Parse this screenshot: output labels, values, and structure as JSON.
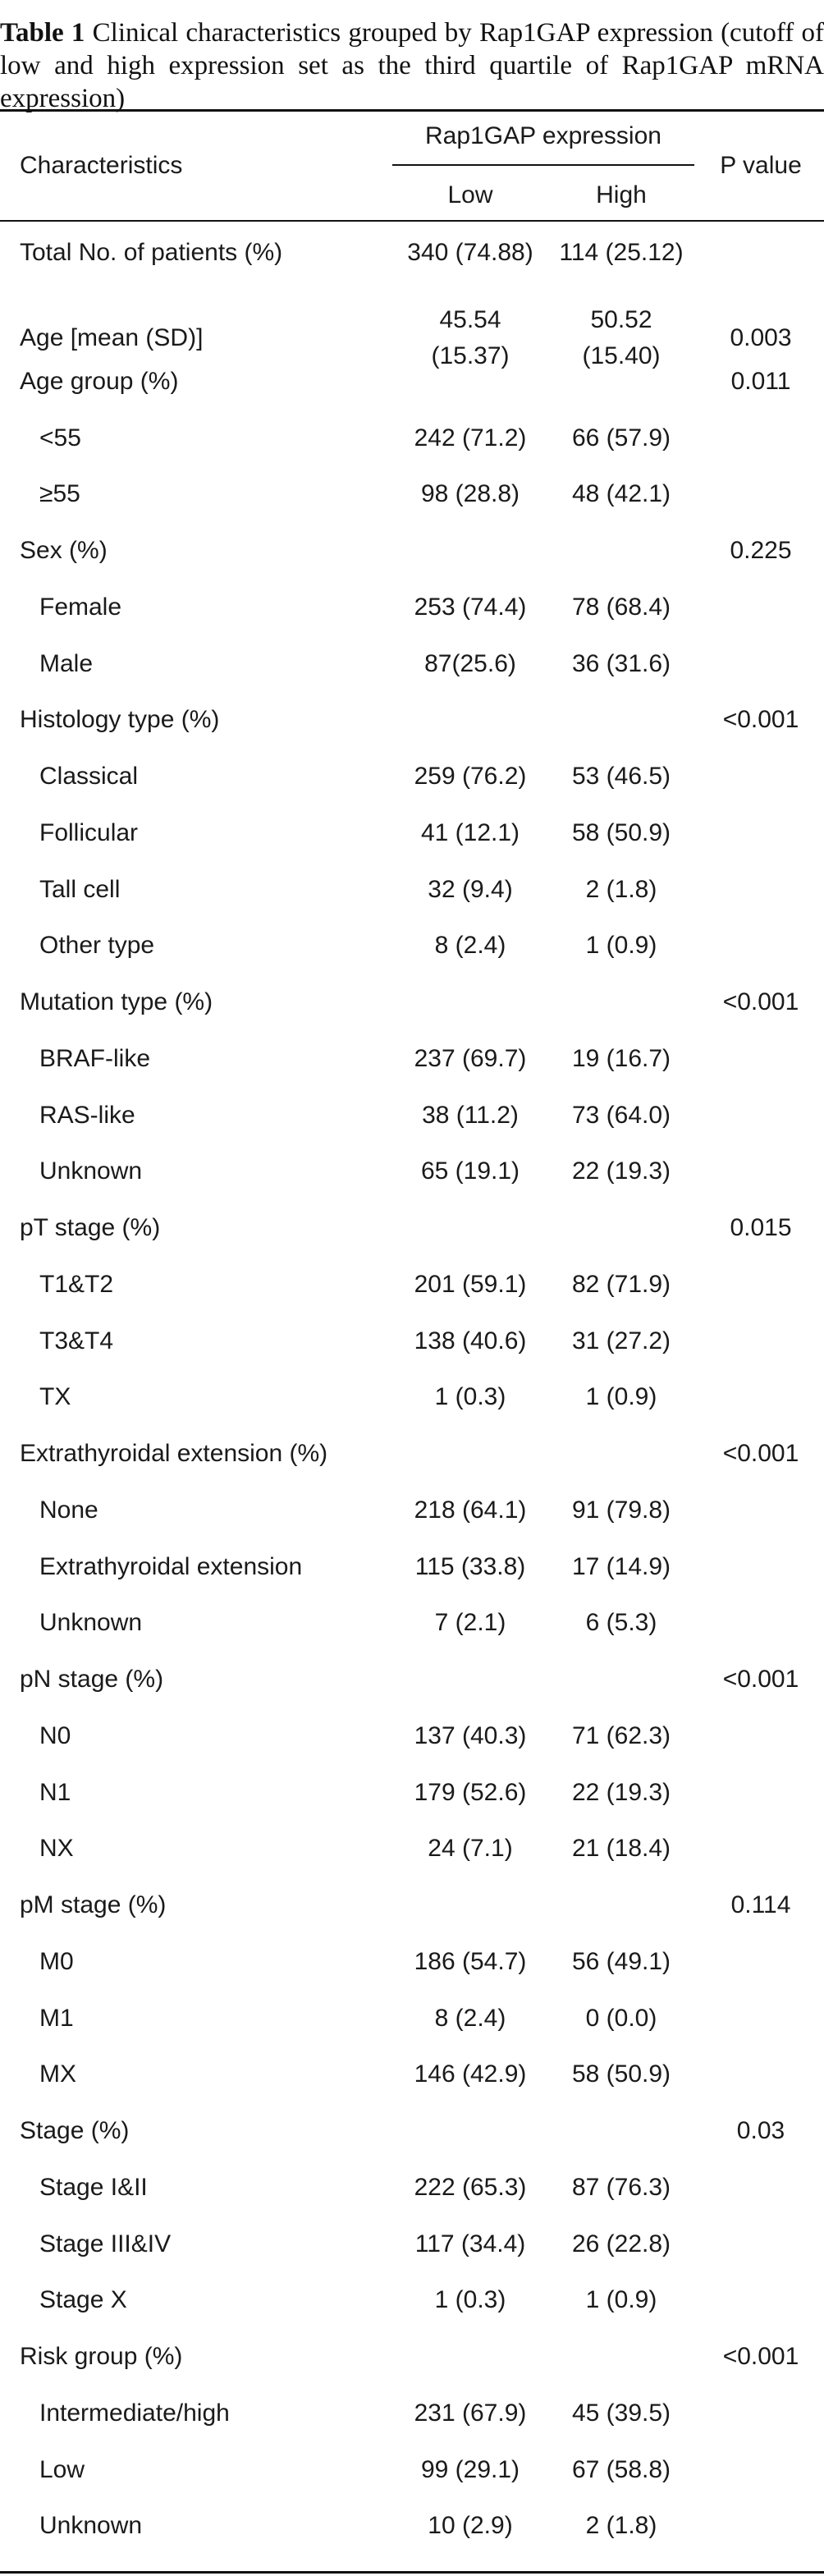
{
  "caption": {
    "label": "Table 1",
    "text": "Clinical characteristics grouped by Rap1GAP expression (cutoff of low and high expression set as the third quartile of Rap1GAP mRNA expression)"
  },
  "header": {
    "characteristics": "Characteristics",
    "group": "Rap1GAP expression",
    "low": "Low",
    "high": "High",
    "pvalue": "P value"
  },
  "rows": [
    {
      "label": "Total No. of patients (%)",
      "low": "340 (74.88)",
      "high": "114 (25.12)",
      "p": ""
    },
    {
      "label": "Age [mean (SD)]",
      "low": "45.54",
      "low2": "(15.37)",
      "high": "50.52",
      "high2": "(15.40)",
      "p": "0.003"
    },
    {
      "label": "Age group (%)",
      "low": "",
      "high": "",
      "p": "0.011"
    },
    {
      "label": "<55",
      "low": "242 (71.2)",
      "high": "66 (57.9)",
      "p": ""
    },
    {
      "label": "≥55",
      "low": "98 (28.8)",
      "high": "48 (42.1)",
      "p": ""
    },
    {
      "label": "Sex (%)",
      "low": "",
      "high": "",
      "p": "0.225"
    },
    {
      "label": "Female",
      "low": "253 (74.4)",
      "high": "78 (68.4)",
      "p": ""
    },
    {
      "label": "Male",
      "low": "87(25.6)",
      "high": "36 (31.6)",
      "p": ""
    },
    {
      "label": "Histology type (%)",
      "low": "",
      "high": "",
      "p": "<0.001"
    },
    {
      "label": "Classical",
      "low": "259 (76.2)",
      "high": "53 (46.5)",
      "p": ""
    },
    {
      "label": "Follicular",
      "low": "41 (12.1)",
      "high": "58 (50.9)",
      "p": ""
    },
    {
      "label": "Tall cell",
      "low": "32 (9.4)",
      "high": "2 (1.8)",
      "p": ""
    },
    {
      "label": "Other type",
      "low": "8 (2.4)",
      "high": "1 (0.9)",
      "p": ""
    },
    {
      "label": "Mutation type (%)",
      "low": "",
      "high": "",
      "p": "<0.001"
    },
    {
      "label": "BRAF-like",
      "low": "237 (69.7)",
      "high": "19 (16.7)",
      "p": ""
    },
    {
      "label": "RAS-like",
      "low": "38 (11.2)",
      "high": "73 (64.0)",
      "p": ""
    },
    {
      "label": "Unknown",
      "low": "65 (19.1)",
      "high": "22 (19.3)",
      "p": ""
    },
    {
      "label": "pT stage (%)",
      "low": "",
      "high": "",
      "p": "0.015"
    },
    {
      "label": "T1&T2",
      "low": "201 (59.1)",
      "high": "82 (71.9)",
      "p": ""
    },
    {
      "label": "T3&T4",
      "low": "138 (40.6)",
      "high": "31 (27.2)",
      "p": ""
    },
    {
      "label": "TX",
      "low": "1 (0.3)",
      "high": "1 (0.9)",
      "p": ""
    },
    {
      "label": "Extrathyroidal extension (%)",
      "low": "",
      "high": "",
      "p": "<0.001"
    },
    {
      "label": "None",
      "low": "218 (64.1)",
      "high": "91 (79.8)",
      "p": ""
    },
    {
      "label": "Extrathyroidal extension",
      "low": "115 (33.8)",
      "high": "17 (14.9)",
      "p": ""
    },
    {
      "label": "Unknown",
      "low": "7 (2.1)",
      "high": "6 (5.3)",
      "p": ""
    },
    {
      "label": "pN stage (%)",
      "low": "",
      "high": "",
      "p": "<0.001"
    },
    {
      "label": "N0",
      "low": "137 (40.3)",
      "high": "71 (62.3)",
      "p": ""
    },
    {
      "label": "N1",
      "low": "179 (52.6)",
      "high": "22 (19.3)",
      "p": ""
    },
    {
      "label": "NX",
      "low": "24 (7.1)",
      "high": "21 (18.4)",
      "p": ""
    },
    {
      "label": "pM stage (%)",
      "low": "",
      "high": "",
      "p": "0.114"
    },
    {
      "label": "M0",
      "low": "186 (54.7)",
      "high": "56 (49.1)",
      "p": ""
    },
    {
      "label": "M1",
      "low": "8 (2.4)",
      "high": "0 (0.0)",
      "p": ""
    },
    {
      "label": "MX",
      "low": "146 (42.9)",
      "high": "58 (50.9)",
      "p": ""
    },
    {
      "label": "Stage (%)",
      "low": "",
      "high": "",
      "p": "0.03"
    },
    {
      "label": "Stage I&II",
      "low": "222 (65.3)",
      "high": "87 (76.3)",
      "p": ""
    },
    {
      "label": "Stage III&IV",
      "low": "117 (34.4)",
      "high": "26 (22.8)",
      "p": ""
    },
    {
      "label": "Stage X",
      "low": "1 (0.3)",
      "high": "1 (0.9)",
      "p": ""
    },
    {
      "label": "Risk group (%)",
      "low": "",
      "high": "",
      "p": "<0.001"
    },
    {
      "label": "Intermediate/high",
      "low": "231 (67.9)",
      "high": "45 (39.5)",
      "p": ""
    },
    {
      "label": "Low",
      "low": "99 (29.1)",
      "high": "67 (58.8)",
      "p": ""
    },
    {
      "label": "Unknown",
      "low": "10 (2.9)",
      "high": "2 (1.8)",
      "p": ""
    }
  ]
}
